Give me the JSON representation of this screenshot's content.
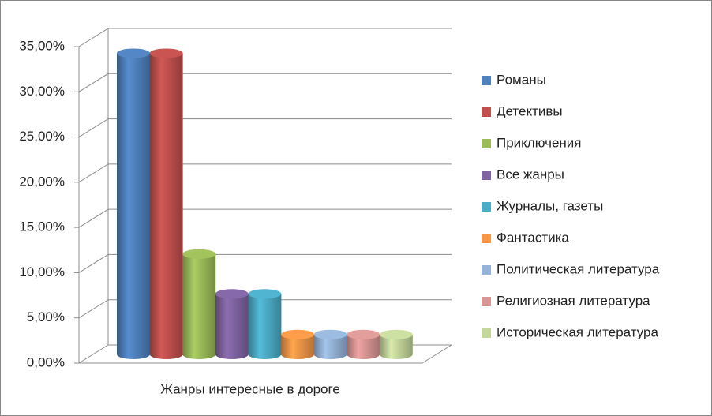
{
  "chart_data": {
    "type": "bar",
    "three_d": true,
    "categories": [
      "Жанры интересные в дороге"
    ],
    "series": [
      {
        "name": "Романы",
        "color": "#4f81bd",
        "values": [
          33.3
        ]
      },
      {
        "name": "Детективы",
        "color": "#c0504d",
        "values": [
          33.3
        ]
      },
      {
        "name": "Приключения",
        "color": "#9bbb59",
        "values": [
          11.1
        ]
      },
      {
        "name": "Все жанры",
        "color": "#8064a2",
        "values": [
          6.7
        ]
      },
      {
        "name": "Журналы, газеты",
        "color": "#4bacc6",
        "values": [
          6.7
        ]
      },
      {
        "name": "Фантастика",
        "color": "#f79646",
        "values": [
          2.2
        ]
      },
      {
        "name": "Политическая литература",
        "color": "#95b3d7",
        "values": [
          2.2
        ]
      },
      {
        "name": "Религиозная литература",
        "color": "#d99694",
        "values": [
          2.2
        ]
      },
      {
        "name": "Историческая литература",
        "color": "#c3d69b",
        "values": [
          2.2
        ]
      }
    ],
    "ylim": [
      0,
      35
    ],
    "yticks": [
      {
        "value": 0,
        "label": "0,00%"
      },
      {
        "value": 5,
        "label": "5,00%"
      },
      {
        "value": 10,
        "label": "10,00%"
      },
      {
        "value": 15,
        "label": "15,00%"
      },
      {
        "value": 20,
        "label": "20,00%"
      },
      {
        "value": 25,
        "label": "25,00%"
      },
      {
        "value": 30,
        "label": "30,00%"
      },
      {
        "value": 35,
        "label": "35,00%"
      }
    ],
    "grid": true,
    "legend": "right"
  }
}
